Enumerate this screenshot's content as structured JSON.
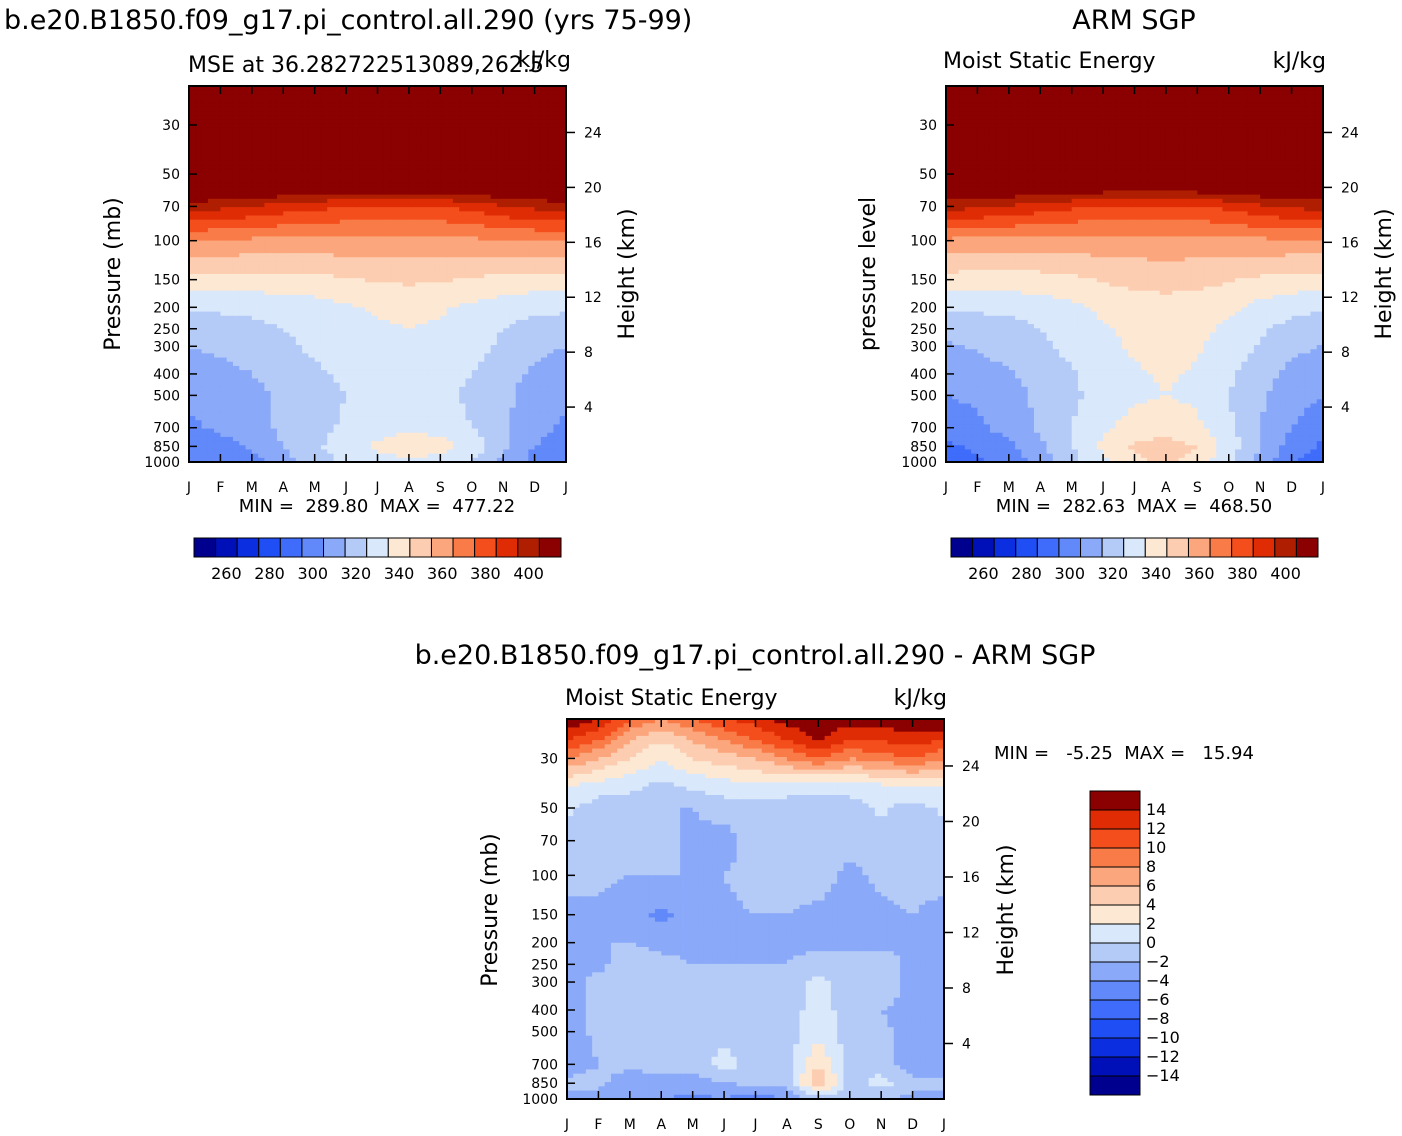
{
  "chart_data": [
    {
      "type": "heatmap",
      "panel_title": "b.e20.B1850.f09_g17.pi_control.all.290 (yrs 75-99)",
      "left_string": "MSE at 36.282722513089,262.5",
      "right_string": "kJ/kg",
      "ylabel": "Pressure (mb)",
      "ylabel_right": "Height (km)",
      "x_ticks": [
        "J",
        "F",
        "M",
        "A",
        "M",
        "J",
        "J",
        "A",
        "S",
        "O",
        "N",
        "D",
        "J"
      ],
      "y_ticks": [
        30,
        50,
        70,
        100,
        150,
        200,
        250,
        300,
        400,
        500,
        700,
        850,
        1000
      ],
      "y_ticks_right": [
        24,
        20,
        16,
        12,
        8,
        4
      ],
      "stats_label": "MIN =  289.80  MAX =  477.22",
      "min": 289.8,
      "max": 477.22,
      "ylim": [
        1000,
        20
      ],
      "contour_levels": [
        250,
        260,
        270,
        280,
        290,
        300,
        310,
        320,
        330,
        340,
        350,
        360,
        370,
        380,
        390,
        400
      ],
      "colorbar_labels": [
        "260",
        "280",
        "300",
        "320",
        "340",
        "360",
        "380",
        "400"
      ],
      "colorbar_orientation": "horizontal",
      "colorbar_colors": [
        "#00008f",
        "#0010b8",
        "#0a2ee0",
        "#1f4ef5",
        "#3f6cfa",
        "#6189fa",
        "#8ba9f9",
        "#b4cbf8",
        "#d9e8fb",
        "#fde8d4",
        "#fccdb0",
        "#fba67d",
        "#f97c48",
        "#f44e1c",
        "#df2c05",
        "#b01e02",
        "#8b0000"
      ],
      "series": [
        {
          "pressure": 1000,
          "values": [
            289.8,
            292,
            296,
            306,
            314,
            322,
            326,
            328,
            326,
            320,
            308,
            296,
            289.8
          ]
        },
        {
          "pressure": 850,
          "values": [
            294,
            296,
            302,
            310,
            318,
            326,
            332,
            336,
            334,
            326,
            312,
            300,
            294
          ]
        },
        {
          "pressure": 700,
          "values": [
            298,
            302,
            306,
            312,
            316,
            322,
            326,
            328,
            326,
            320,
            312,
            304,
            298
          ]
        },
        {
          "pressure": 500,
          "values": [
            302,
            304,
            307,
            312,
            316,
            320,
            322,
            323,
            322,
            318,
            312,
            306,
            302
          ]
        },
        {
          "pressure": 400,
          "values": [
            305,
            307,
            310,
            314,
            318,
            322,
            325,
            326,
            324,
            320,
            314,
            308,
            305
          ]
        },
        {
          "pressure": 300,
          "values": [
            310,
            312,
            314,
            318,
            322,
            326,
            328,
            329,
            328,
            324,
            318,
            313,
            310
          ]
        },
        {
          "pressure": 250,
          "values": [
            314,
            315,
            317,
            320,
            323,
            327,
            329,
            330,
            329,
            326,
            320,
            316,
            314
          ]
        },
        {
          "pressure": 200,
          "values": [
            322,
            322,
            323,
            324,
            326,
            329,
            331,
            332,
            331,
            328,
            325,
            323,
            322
          ]
        },
        {
          "pressure": 150,
          "values": [
            337,
            336,
            336,
            336,
            337,
            339,
            341,
            342,
            341,
            339,
            337,
            336,
            337
          ]
        },
        {
          "pressure": 100,
          "values": [
            360,
            359,
            358,
            357,
            357,
            357,
            357,
            357,
            357,
            358,
            359,
            360,
            360
          ]
        },
        {
          "pressure": 70,
          "values": [
            395,
            393,
            390,
            386,
            383,
            380,
            379,
            379,
            380,
            384,
            389,
            393,
            395
          ]
        },
        {
          "pressure": 50,
          "values": [
            430,
            430,
            430,
            430,
            430,
            430,
            430,
            430,
            430,
            430,
            430,
            430,
            430
          ]
        },
        {
          "pressure": 30,
          "values": [
            470,
            470,
            470,
            470,
            470,
            470,
            470,
            470,
            470,
            470,
            470,
            470,
            470
          ]
        },
        {
          "pressure": 20,
          "values": [
            477,
            477,
            477,
            477,
            477,
            477,
            477,
            477,
            477,
            477,
            477,
            477,
            477
          ]
        }
      ]
    },
    {
      "type": "heatmap",
      "panel_title": "ARM SGP",
      "left_string": "Moist Static Energy",
      "right_string": "kJ/kg",
      "ylabel": "pressure level",
      "ylabel_right": "Height (km)",
      "x_ticks": [
        "J",
        "F",
        "M",
        "A",
        "M",
        "J",
        "J",
        "A",
        "S",
        "O",
        "N",
        "D",
        "J"
      ],
      "y_ticks": [
        30,
        50,
        70,
        100,
        150,
        200,
        250,
        300,
        400,
        500,
        700,
        850,
        1000
      ],
      "y_ticks_right": [
        24,
        20,
        16,
        12,
        8,
        4
      ],
      "stats_label": "MIN =  282.63  MAX =  468.50",
      "min": 282.63,
      "max": 468.5,
      "ylim": [
        1000,
        20
      ],
      "contour_levels": [
        250,
        260,
        270,
        280,
        290,
        300,
        310,
        320,
        330,
        340,
        350,
        360,
        370,
        380,
        390,
        400
      ],
      "colorbar_labels": [
        "260",
        "280",
        "300",
        "320",
        "340",
        "360",
        "380",
        "400"
      ],
      "colorbar_orientation": "horizontal",
      "colorbar_colors": [
        "#00008f",
        "#0010b8",
        "#0a2ee0",
        "#1f4ef5",
        "#3f6cfa",
        "#6189fa",
        "#8ba9f9",
        "#b4cbf8",
        "#d9e8fb",
        "#fde8d4",
        "#fccdb0",
        "#fba67d",
        "#f97c48",
        "#f44e1c",
        "#df2c05",
        "#b01e02",
        "#8b0000"
      ],
      "series": [
        {
          "pressure": 1000,
          "values": [
            282.6,
            288,
            294,
            304,
            316,
            328,
            338,
            342,
            336,
            322,
            306,
            292,
            282.6
          ]
        },
        {
          "pressure": 850,
          "values": [
            288,
            292,
            298,
            308,
            320,
            332,
            342,
            344,
            340,
            326,
            310,
            296,
            288
          ]
        },
        {
          "pressure": 700,
          "values": [
            294,
            298,
            304,
            312,
            320,
            328,
            334,
            336,
            332,
            322,
            310,
            300,
            294
          ]
        },
        {
          "pressure": 500,
          "values": [
            300,
            302,
            306,
            312,
            318,
            324,
            328,
            330,
            328,
            320,
            312,
            304,
            300
          ]
        },
        {
          "pressure": 400,
          "values": [
            304,
            306,
            309,
            314,
            319,
            325,
            329,
            331,
            329,
            322,
            314,
            307,
            304
          ]
        },
        {
          "pressure": 300,
          "values": [
            309,
            311,
            314,
            318,
            323,
            328,
            331,
            333,
            331,
            326,
            319,
            313,
            309
          ]
        },
        {
          "pressure": 250,
          "values": [
            313,
            314,
            316,
            320,
            324,
            329,
            332,
            334,
            333,
            328,
            322,
            316,
            313
          ]
        },
        {
          "pressure": 200,
          "values": [
            321,
            322,
            323,
            325,
            328,
            332,
            335,
            336,
            335,
            332,
            327,
            324,
            321
          ]
        },
        {
          "pressure": 150,
          "values": [
            336,
            335,
            335,
            336,
            338,
            341,
            343,
            344,
            343,
            341,
            338,
            336,
            336
          ]
        },
        {
          "pressure": 100,
          "values": [
            358,
            357,
            356,
            356,
            356,
            356,
            356,
            356,
            356,
            357,
            358,
            358,
            358
          ]
        },
        {
          "pressure": 70,
          "values": [
            394,
            392,
            389,
            385,
            382,
            379,
            378,
            378,
            379,
            383,
            388,
            392,
            394
          ]
        },
        {
          "pressure": 50,
          "values": [
            428,
            428,
            428,
            428,
            428,
            428,
            428,
            428,
            428,
            428,
            428,
            428,
            428
          ]
        },
        {
          "pressure": 30,
          "values": [
            463,
            463,
            463,
            463,
            463,
            463,
            463,
            463,
            463,
            463,
            463,
            463,
            463
          ]
        },
        {
          "pressure": 20,
          "values": [
            468,
            468,
            468,
            468,
            468,
            468,
            468,
            468,
            468,
            468,
            468,
            468,
            468
          ]
        }
      ]
    },
    {
      "type": "heatmap",
      "panel_title": "b.e20.B1850.f09_g17.pi_control.all.290 - ARM SGP",
      "left_string": "Moist Static Energy",
      "right_string": "kJ/kg",
      "ylabel": "Pressure (mb)",
      "ylabel_right": "Height (km)",
      "x_ticks": [
        "J",
        "F",
        "M",
        "A",
        "M",
        "J",
        "J",
        "A",
        "S",
        "O",
        "N",
        "D",
        "J"
      ],
      "y_ticks": [
        30,
        50,
        70,
        100,
        150,
        200,
        250,
        300,
        400,
        500,
        700,
        850,
        1000
      ],
      "y_ticks_right": [
        24,
        20,
        16,
        12,
        8,
        4
      ],
      "stats_label": "MIN =   -5.25  MAX =   15.94",
      "min": -5.25,
      "max": 15.94,
      "ylim": [
        1000,
        20
      ],
      "contour_levels": [
        -14,
        -12,
        -10,
        -8,
        -6,
        -4,
        -2,
        0,
        2,
        4,
        6,
        8,
        10,
        12,
        14
      ],
      "colorbar_labels": [
        "14",
        "12",
        "10",
        "8",
        "6",
        "4",
        "2",
        "0",
        "−2",
        "−4",
        "−6",
        "−8",
        "−10",
        "−12",
        "−14"
      ],
      "colorbar_orientation": "vertical",
      "colorbar_colors": [
        "#00008f",
        "#0010b8",
        "#0a2ee0",
        "#1f4ef5",
        "#3f6cfa",
        "#6189fa",
        "#8ba9f9",
        "#b4cbf8",
        "#d9e8fb",
        "#fde8d4",
        "#fccdb0",
        "#fba67d",
        "#f97c48",
        "#f44e1c",
        "#df2c05",
        "#8b0000"
      ],
      "series": [
        {
          "pressure": 1000,
          "values": [
            -2.5,
            -3,
            -3.5,
            -4,
            -4.5,
            -4,
            -5.25,
            -4,
            -1,
            -2,
            -2,
            -2.5,
            -2.5
          ]
        },
        {
          "pressure": 850,
          "values": [
            -1.5,
            -1.5,
            -3,
            -2.5,
            -3,
            -2,
            -1.5,
            -1,
            6,
            -1,
            1,
            -1.5,
            -1.5
          ]
        },
        {
          "pressure": 700,
          "values": [
            -3,
            -2,
            -1.5,
            -1.5,
            -1,
            1,
            -1,
            -1,
            4,
            -1,
            -1,
            -3,
            -3
          ]
        },
        {
          "pressure": 500,
          "values": [
            -3,
            -1.5,
            -1,
            -1,
            -1,
            -1,
            -1,
            -1,
            1.5,
            -1,
            -1.5,
            -3,
            -3
          ]
        },
        {
          "pressure": 400,
          "values": [
            -3,
            -1.5,
            -1,
            -1,
            -1,
            -1,
            -1,
            -1,
            1,
            -1,
            -2,
            -2.5,
            -3
          ]
        },
        {
          "pressure": 300,
          "values": [
            -2.5,
            -1.5,
            -1,
            -2,
            -1,
            -1,
            -1,
            -1,
            0.5,
            -1,
            -1,
            -2.5,
            -2.5
          ]
        },
        {
          "pressure": 250,
          "values": [
            -2.5,
            -2.5,
            -1,
            -1.5,
            -2,
            -2,
            -2,
            -2,
            -1,
            -1,
            -1,
            -2.5,
            -2.5
          ]
        },
        {
          "pressure": 200,
          "values": [
            -2.5,
            -2,
            -2,
            -2.5,
            -2.5,
            -2.5,
            -2.5,
            -2.5,
            -2.5,
            -2.5,
            -2.5,
            -2.5,
            -2.5
          ]
        },
        {
          "pressure": 150,
          "values": [
            -3,
            -2.5,
            -3,
            -4.5,
            -3,
            -2.5,
            -2,
            -2,
            -2.5,
            -3,
            -2.5,
            -2,
            -3
          ]
        },
        {
          "pressure": 100,
          "values": [
            -1,
            -1.5,
            -2,
            -2,
            -2,
            -2,
            -1,
            -1,
            -1,
            -2.5,
            -1.5,
            -1,
            -1
          ]
        },
        {
          "pressure": 70,
          "values": [
            -1,
            -1,
            -1,
            -1.5,
            -2.5,
            -3,
            -1,
            -1,
            -1,
            -1.5,
            -1,
            -1,
            -1
          ]
        },
        {
          "pressure": 50,
          "values": [
            0.5,
            -1,
            -1,
            -2,
            -2,
            -1,
            -1,
            -1,
            -1,
            -1,
            0.5,
            -1,
            0.5
          ]
        },
        {
          "pressure": 40,
          "values": [
            2,
            1,
            0.5,
            -0.5,
            0.5,
            1,
            1.5,
            1,
            0.5,
            1,
            1.5,
            2,
            2
          ]
        },
        {
          "pressure": 30,
          "values": [
            8,
            6,
            4,
            2,
            4,
            5,
            6,
            8,
            10,
            8,
            9,
            10,
            8
          ]
        },
        {
          "pressure": 25,
          "values": [
            12,
            10,
            6,
            4,
            6,
            8,
            10,
            12,
            14,
            12,
            12,
            13,
            12
          ]
        },
        {
          "pressure": 20,
          "values": [
            15.9,
            14,
            10,
            8,
            10,
            12,
            13,
            15,
            15.9,
            15,
            15,
            15.9,
            15.9
          ]
        }
      ]
    }
  ]
}
